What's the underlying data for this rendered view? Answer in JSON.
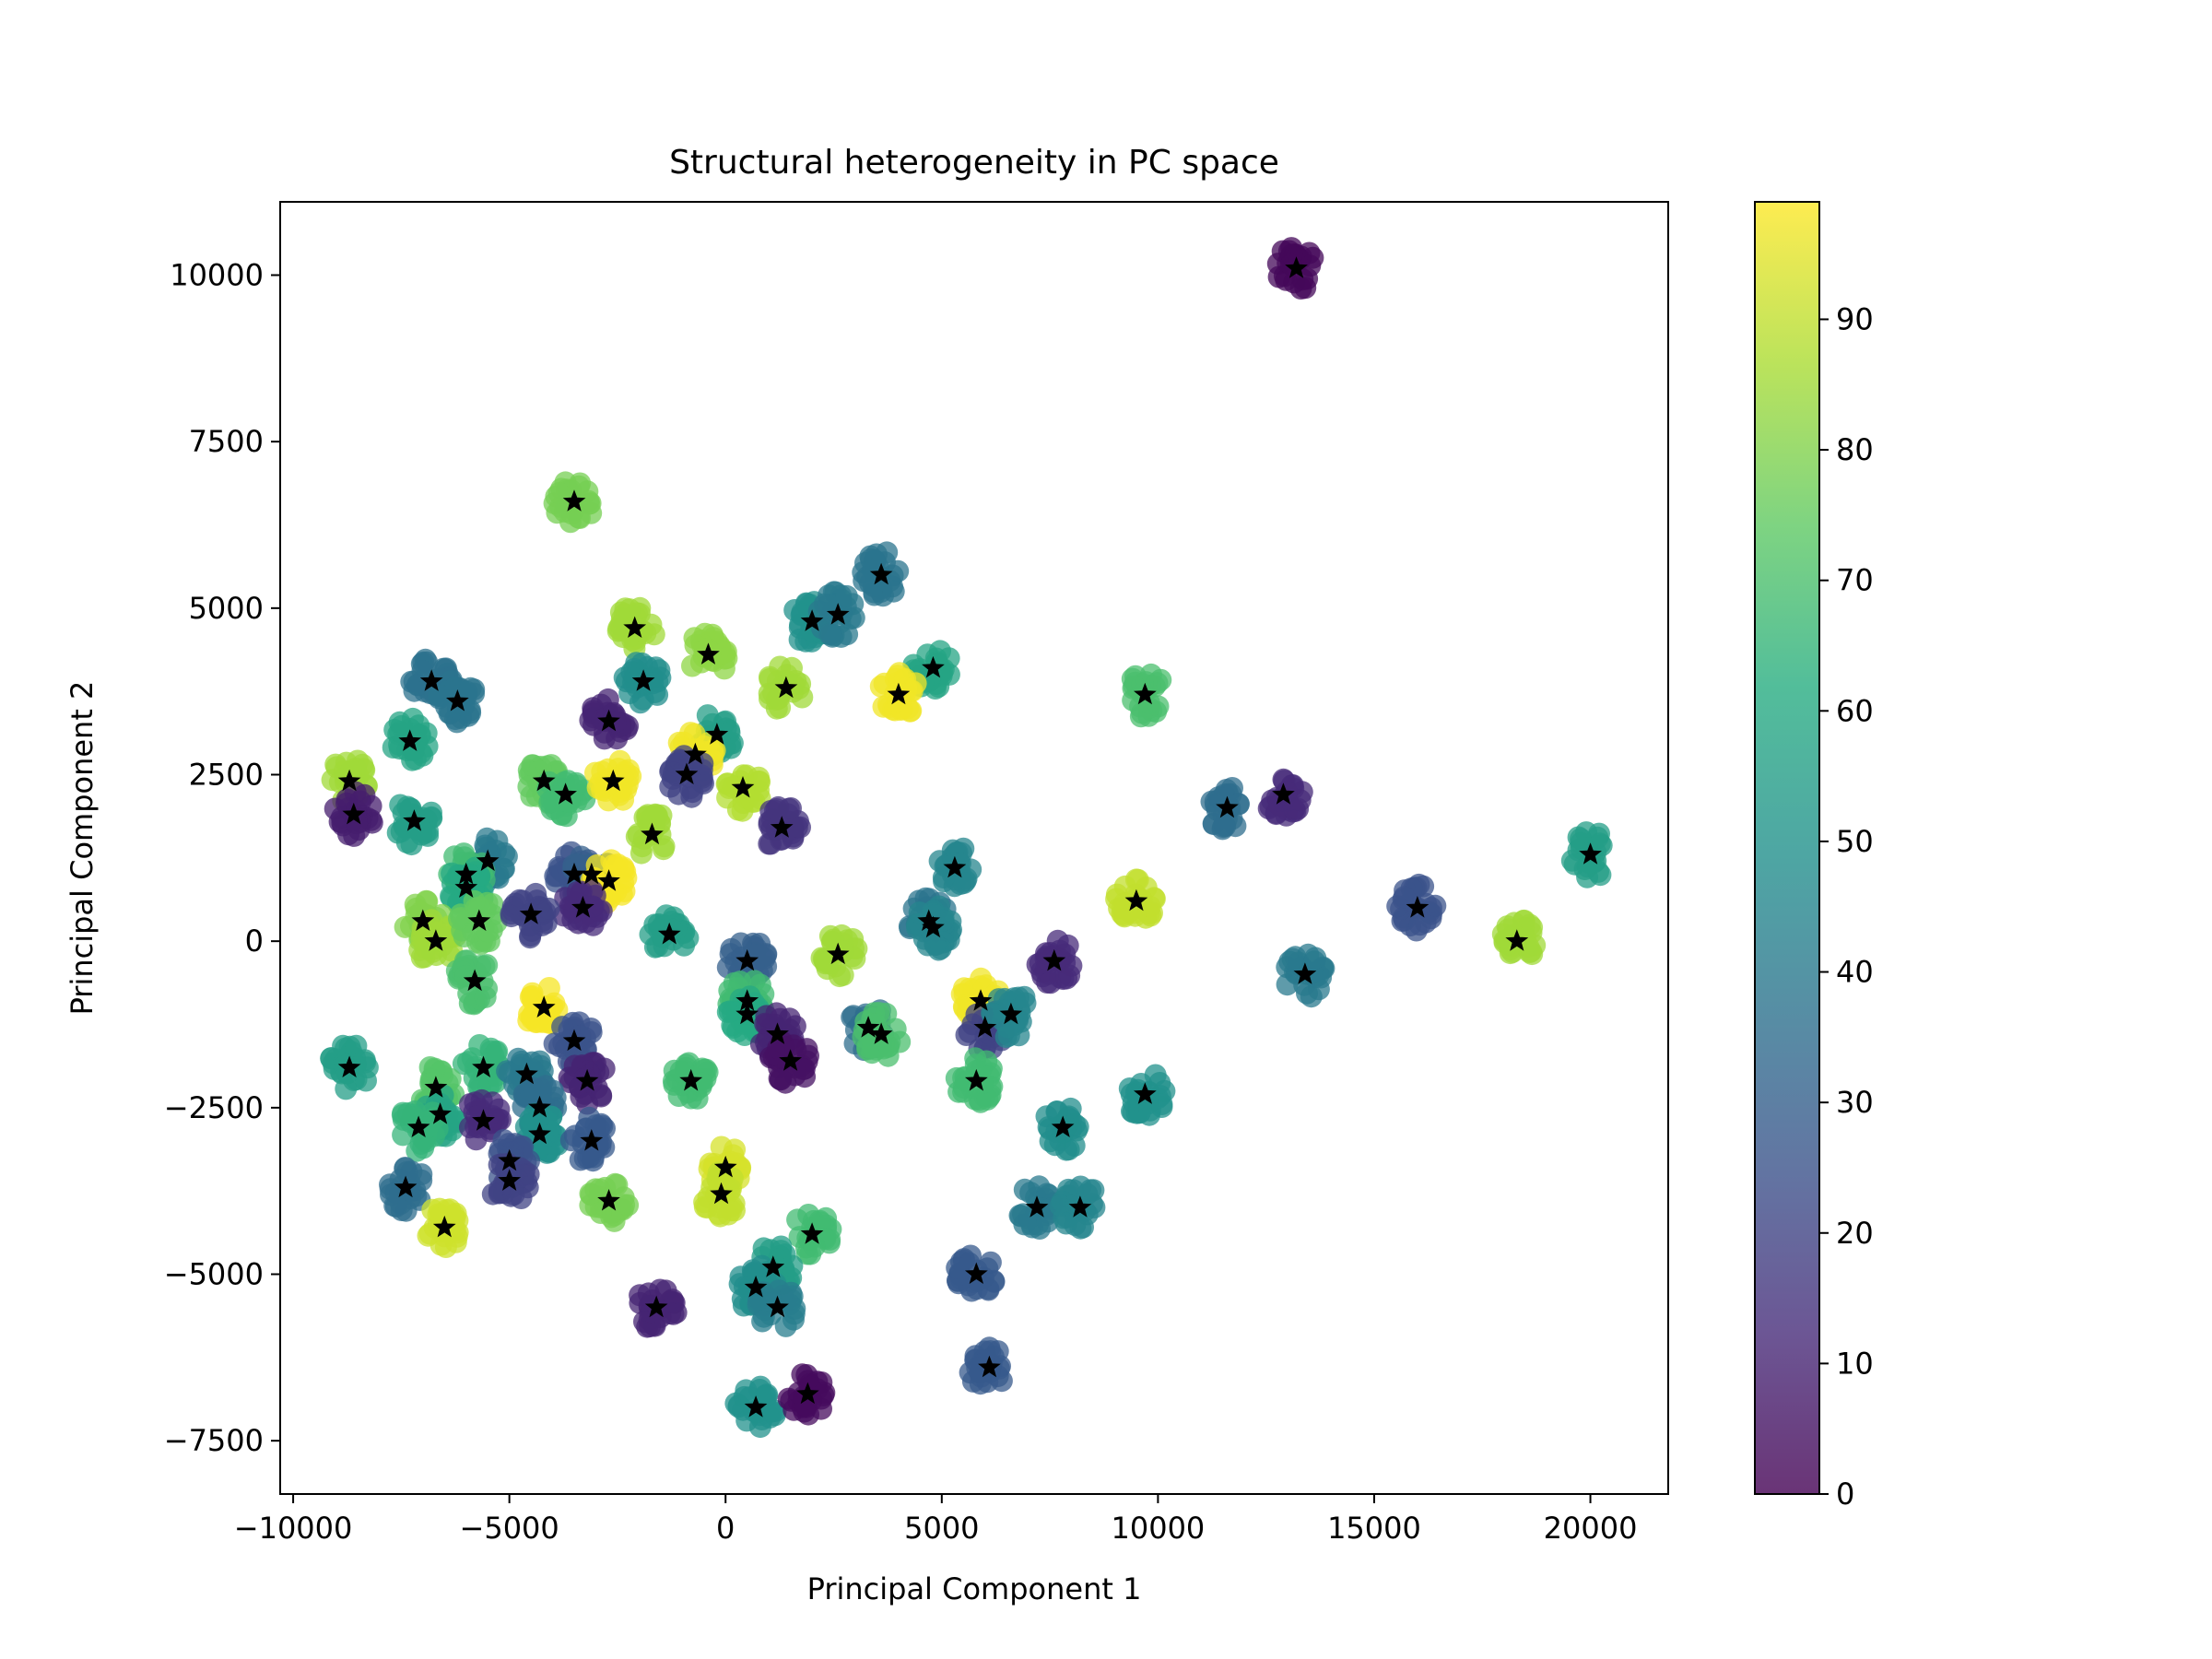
{
  "chart_data": {
    "type": "scatter",
    "title": "Structural heterogeneity in PC space",
    "xlabel": "Principal Component 1",
    "ylabel": "Principal Component 2",
    "xlim": [
      -10300,
      21800
    ],
    "ylim": [
      -8300,
      11100
    ],
    "xticks": [
      -10000,
      -5000,
      0,
      5000,
      10000,
      15000,
      20000
    ],
    "xtick_labels": [
      "−10000",
      "−5000",
      "0",
      "5000",
      "10000",
      "15000",
      "20000"
    ],
    "yticks": [
      -7500,
      -5000,
      -2500,
      0,
      2500,
      5000,
      7500,
      10000
    ],
    "ytick_labels": [
      "−7500",
      "−5000",
      "−2500",
      "0",
      "2500",
      "5000",
      "7500",
      "10000"
    ],
    "colormap": "viridis",
    "color_range": [
      0,
      99
    ],
    "colorbar_ticks": [
      0,
      10,
      20,
      30,
      40,
      50,
      60,
      70,
      80,
      90
    ],
    "colorbar_tick_labels": [
      "0",
      "10",
      "20",
      "30",
      "40",
      "50",
      "60",
      "70",
      "80",
      "90"
    ],
    "grid": false,
    "marker_color": "#000000",
    "clusters": [
      {
        "x": 13200,
        "y": 10100,
        "c": 2
      },
      {
        "x": -3500,
        "y": 6600,
        "c": 78
      },
      {
        "x": 3600,
        "y": 5500,
        "c": 38
      },
      {
        "x": 2000,
        "y": 4800,
        "c": 50
      },
      {
        "x": 2600,
        "y": 4900,
        "c": 40
      },
      {
        "x": -2100,
        "y": 4700,
        "c": 85
      },
      {
        "x": -400,
        "y": 4300,
        "c": 82
      },
      {
        "x": 4800,
        "y": 4100,
        "c": 58
      },
      {
        "x": 4000,
        "y": 3700,
        "c": 97
      },
      {
        "x": 1400,
        "y": 3800,
        "c": 85
      },
      {
        "x": 9700,
        "y": 3700,
        "c": 70
      },
      {
        "x": -6800,
        "y": 3900,
        "c": 37
      },
      {
        "x": -6200,
        "y": 3600,
        "c": 38
      },
      {
        "x": -1900,
        "y": 3900,
        "c": 48
      },
      {
        "x": -2700,
        "y": 3300,
        "c": 10
      },
      {
        "x": -200,
        "y": 3100,
        "c": 55
      },
      {
        "x": -7300,
        "y": 3000,
        "c": 58
      },
      {
        "x": -700,
        "y": 2800,
        "c": 97
      },
      {
        "x": -900,
        "y": 2500,
        "c": 20
      },
      {
        "x": -4200,
        "y": 2400,
        "c": 75
      },
      {
        "x": -3700,
        "y": 2200,
        "c": 68
      },
      {
        "x": -2600,
        "y": 2400,
        "c": 97
      },
      {
        "x": 400,
        "y": 2300,
        "c": 88
      },
      {
        "x": -8700,
        "y": 2400,
        "c": 85
      },
      {
        "x": -8600,
        "y": 1900,
        "c": 8
      },
      {
        "x": -7200,
        "y": 1800,
        "c": 55
      },
      {
        "x": -1700,
        "y": 1600,
        "c": 85
      },
      {
        "x": 1300,
        "y": 1700,
        "c": 15
      },
      {
        "x": 11600,
        "y": 2000,
        "c": 35
      },
      {
        "x": 12900,
        "y": 2200,
        "c": 12
      },
      {
        "x": 20000,
        "y": 1300,
        "c": 55
      },
      {
        "x": -5500,
        "y": 1200,
        "c": 40
      },
      {
        "x": -6000,
        "y": 1000,
        "c": 68
      },
      {
        "x": -3500,
        "y": 1000,
        "c": 25
      },
      {
        "x": -3100,
        "y": 1000,
        "c": 30
      },
      {
        "x": -2700,
        "y": 900,
        "c": 98
      },
      {
        "x": -3300,
        "y": 500,
        "c": 12
      },
      {
        "x": -6000,
        "y": 800,
        "c": 60
      },
      {
        "x": 5300,
        "y": 1100,
        "c": 45
      },
      {
        "x": 9500,
        "y": 600,
        "c": 90
      },
      {
        "x": 16000,
        "y": 500,
        "c": 25
      },
      {
        "x": 4700,
        "y": 300,
        "c": 38
      },
      {
        "x": 4800,
        "y": 200,
        "c": 45
      },
      {
        "x": -7000,
        "y": 300,
        "c": 80
      },
      {
        "x": -6700,
        "y": 0,
        "c": 85
      },
      {
        "x": -5700,
        "y": 300,
        "c": 75
      },
      {
        "x": -4500,
        "y": 400,
        "c": 20
      },
      {
        "x": -1300,
        "y": 100,
        "c": 55
      },
      {
        "x": 18300,
        "y": 0,
        "c": 85
      },
      {
        "x": 500,
        "y": -300,
        "c": 30
      },
      {
        "x": 2600,
        "y": -200,
        "c": 85
      },
      {
        "x": 7600,
        "y": -300,
        "c": 12
      },
      {
        "x": 13400,
        "y": -500,
        "c": 40
      },
      {
        "x": -5800,
        "y": -600,
        "c": 70
      },
      {
        "x": -4200,
        "y": -1000,
        "c": 98
      },
      {
        "x": 500,
        "y": -900,
        "c": 68
      },
      {
        "x": 500,
        "y": -1100,
        "c": 60
      },
      {
        "x": 5900,
        "y": -900,
        "c": 97
      },
      {
        "x": 6000,
        "y": -1300,
        "c": 20
      },
      {
        "x": 6600,
        "y": -1100,
        "c": 45
      },
      {
        "x": 3300,
        "y": -1300,
        "c": 35
      },
      {
        "x": 3600,
        "y": -1400,
        "c": 70
      },
      {
        "x": 1200,
        "y": -1400,
        "c": 10
      },
      {
        "x": 1500,
        "y": -1800,
        "c": 5
      },
      {
        "x": -3500,
        "y": -1500,
        "c": 25
      },
      {
        "x": -8700,
        "y": -1900,
        "c": 55
      },
      {
        "x": -5600,
        "y": -1900,
        "c": 65
      },
      {
        "x": -4600,
        "y": -2000,
        "c": 40
      },
      {
        "x": -3200,
        "y": -2100,
        "c": 10
      },
      {
        "x": -800,
        "y": -2100,
        "c": 68
      },
      {
        "x": 5800,
        "y": -2100,
        "c": 68
      },
      {
        "x": 9700,
        "y": -2300,
        "c": 50
      },
      {
        "x": -6700,
        "y": -2200,
        "c": 72
      },
      {
        "x": -6600,
        "y": -2600,
        "c": 58
      },
      {
        "x": -7100,
        "y": -2800,
        "c": 65
      },
      {
        "x": -5600,
        "y": -2700,
        "c": 12
      },
      {
        "x": -4300,
        "y": -2500,
        "c": 35
      },
      {
        "x": -4300,
        "y": -2900,
        "c": 50
      },
      {
        "x": 7800,
        "y": -2800,
        "c": 48
      },
      {
        "x": -3100,
        "y": -3000,
        "c": 28
      },
      {
        "x": -5000,
        "y": -3300,
        "c": 25
      },
      {
        "x": -5000,
        "y": -3600,
        "c": 20
      },
      {
        "x": 0,
        "y": -3400,
        "c": 93
      },
      {
        "x": -100,
        "y": -3800,
        "c": 90
      },
      {
        "x": -2700,
        "y": -3900,
        "c": 78
      },
      {
        "x": -7400,
        "y": -3700,
        "c": 35
      },
      {
        "x": 7200,
        "y": -4000,
        "c": 40
      },
      {
        "x": 8200,
        "y": -4000,
        "c": 45
      },
      {
        "x": -6500,
        "y": -4300,
        "c": 92
      },
      {
        "x": 2000,
        "y": -4400,
        "c": 68
      },
      {
        "x": 5800,
        "y": -5000,
        "c": 28
      },
      {
        "x": 1100,
        "y": -4900,
        "c": 55
      },
      {
        "x": 700,
        "y": -5200,
        "c": 48
      },
      {
        "x": 1200,
        "y": -5500,
        "c": 42
      },
      {
        "x": -1600,
        "y": -5500,
        "c": 10
      },
      {
        "x": 6100,
        "y": -6400,
        "c": 28
      },
      {
        "x": 700,
        "y": -7000,
        "c": 50
      },
      {
        "x": 1900,
        "y": -6800,
        "c": 3
      }
    ]
  }
}
